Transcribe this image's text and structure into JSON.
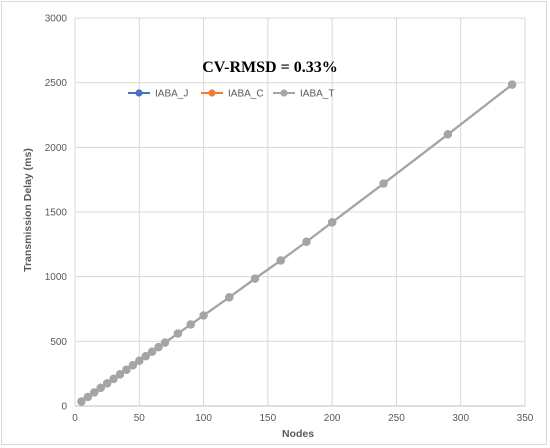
{
  "chart_data": {
    "type": "line",
    "title": "",
    "annotation": "CV-RMSD = 0.33%",
    "xlabel": "Nodes",
    "ylabel": "Transmission Delay (ms)",
    "xlim": [
      0,
      350
    ],
    "ylim": [
      0,
      3000
    ],
    "xticks": [
      0,
      50,
      100,
      150,
      200,
      250,
      300,
      350
    ],
    "yticks": [
      0,
      500,
      1000,
      1500,
      2000,
      2500,
      3000
    ],
    "grid": true,
    "legend_position": "upper-left inside plot",
    "x": [
      5,
      10,
      15,
      20,
      25,
      30,
      35,
      40,
      45,
      50,
      55,
      60,
      65,
      70,
      80,
      90,
      100,
      120,
      140,
      160,
      180,
      200,
      240,
      290,
      340
    ],
    "series": [
      {
        "name": "IABA_J",
        "color": "#4472c4",
        "marker": "circle",
        "values": [
          35,
          70,
          105,
          140,
          175,
          210,
          245,
          280,
          315,
          350,
          385,
          420,
          455,
          490,
          560,
          630,
          700,
          840,
          985,
          1125,
          1270,
          1420,
          1720,
          2100,
          2485
        ]
      },
      {
        "name": "IABA_C",
        "color": "#ed7d31",
        "marker": "circle",
        "values": [
          35,
          70,
          105,
          140,
          175,
          210,
          245,
          280,
          315,
          350,
          385,
          420,
          455,
          490,
          560,
          630,
          700,
          840,
          985,
          1125,
          1270,
          1420,
          1720,
          2100,
          2485
        ]
      },
      {
        "name": "IABA_T",
        "color": "#a5a5a5",
        "marker": "circle",
        "values": [
          35,
          70,
          105,
          140,
          175,
          210,
          245,
          280,
          315,
          350,
          385,
          420,
          455,
          490,
          560,
          630,
          700,
          840,
          985,
          1125,
          1270,
          1420,
          1720,
          2100,
          2485
        ]
      }
    ]
  }
}
